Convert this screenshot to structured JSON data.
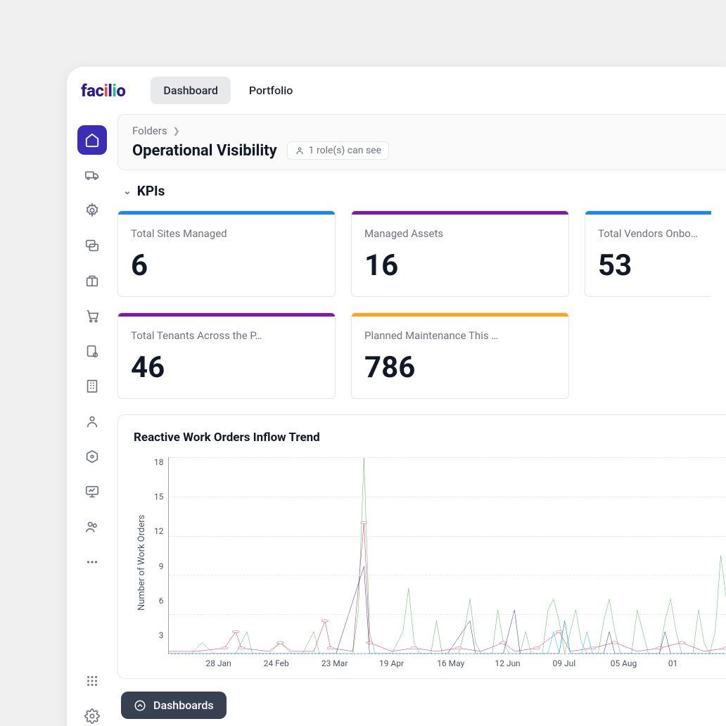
{
  "brand": {
    "name": "facilio"
  },
  "topnav": {
    "tabs": [
      {
        "label": "Dashboard",
        "active": true
      },
      {
        "label": "Portfolio",
        "active": false
      }
    ]
  },
  "breadcrumb": {
    "parent": "Folders",
    "title": "Operational Visibility",
    "roles_label": "1 role(s) can see"
  },
  "section": {
    "kpis_title": "KPIs"
  },
  "kpi_cards": [
    {
      "label": "Total Sites Managed",
      "value": "6",
      "stripe_color": "#1e88e5"
    },
    {
      "label": "Managed Assets",
      "value": "16",
      "stripe_color": "#7b1fa2"
    },
    {
      "label": "Total Vendors Onboarded",
      "value": "53",
      "stripe_color": "#1e88e5",
      "cut": true
    },
    {
      "label": "Total Tenants Across the P…",
      "value": "46",
      "stripe_color": "#7b1fa2"
    },
    {
      "label": "Planned Maintenance This …",
      "value": "786",
      "stripe_color": "#f5a623"
    }
  ],
  "chart": {
    "title": "Reactive Work Orders Inflow Trend",
    "type": "line",
    "y_label": "Number of Work Orders",
    "y_ticks": [
      "18",
      "15",
      "12",
      "9",
      "6",
      "3"
    ],
    "y_max": 18,
    "x_ticks": [
      "28 Jan",
      "24 Feb",
      "23 Mar",
      "19 Apr",
      "16 May",
      "12 Jun",
      "09 Jul",
      "05 Aug",
      "01"
    ],
    "grid_color": "#e5e7eb",
    "axis_color": "#9ca3af",
    "background_color": "#ffffff",
    "axis_fontsize": 12,
    "series": [
      {
        "name": "green",
        "color": "#4caf50",
        "stroke_width": 1.6,
        "points": [
          [
            0,
            0
          ],
          [
            4,
            0
          ],
          [
            6,
            1
          ],
          [
            8,
            0
          ],
          [
            12,
            0
          ],
          [
            14,
            2
          ],
          [
            15,
            0
          ],
          [
            18,
            0
          ],
          [
            20,
            1
          ],
          [
            22,
            0
          ],
          [
            24,
            0
          ],
          [
            26,
            2
          ],
          [
            27,
            0
          ],
          [
            33,
            0
          ],
          [
            34,
            4
          ],
          [
            35,
            18
          ],
          [
            36,
            2
          ],
          [
            37,
            0
          ],
          [
            40,
            0
          ],
          [
            42,
            2
          ],
          [
            43,
            6
          ],
          [
            44,
            1
          ],
          [
            45,
            0
          ],
          [
            47,
            0
          ],
          [
            48,
            3
          ],
          [
            49,
            0
          ],
          [
            52,
            0
          ],
          [
            53,
            2
          ],
          [
            54,
            5
          ],
          [
            55,
            1
          ],
          [
            56,
            0
          ],
          [
            58,
            0
          ],
          [
            59,
            4
          ],
          [
            60,
            1
          ],
          [
            61,
            0
          ],
          [
            63,
            0
          ],
          [
            64,
            2
          ],
          [
            65,
            0
          ],
          [
            67,
            0
          ],
          [
            68,
            4
          ],
          [
            69,
            5
          ],
          [
            70,
            3
          ],
          [
            71,
            0
          ],
          [
            72,
            2
          ],
          [
            73,
            4
          ],
          [
            74,
            1
          ],
          [
            75,
            0
          ],
          [
            77,
            0
          ],
          [
            78,
            3
          ],
          [
            79,
            5
          ],
          [
            80,
            2
          ],
          [
            81,
            0
          ],
          [
            83,
            0
          ],
          [
            84,
            4
          ],
          [
            85,
            2
          ],
          [
            86,
            0
          ],
          [
            88,
            0
          ],
          [
            89,
            3
          ],
          [
            90,
            5
          ],
          [
            91,
            2
          ],
          [
            92,
            0
          ],
          [
            94,
            0
          ],
          [
            95,
            4
          ],
          [
            96,
            1
          ],
          [
            97,
            0
          ],
          [
            98,
            2
          ],
          [
            99,
            9
          ],
          [
            100,
            5
          ]
        ]
      },
      {
        "name": "magenta",
        "color": "#c2185b",
        "stroke_width": 1.6,
        "marker": "circle",
        "marker_size": 3,
        "points": [
          [
            0,
            0.2
          ],
          [
            5,
            0.2
          ],
          [
            10,
            0.5
          ],
          [
            12,
            2
          ],
          [
            13,
            0.5
          ],
          [
            18,
            0.2
          ],
          [
            20,
            1
          ],
          [
            22,
            0.2
          ],
          [
            26,
            0.2
          ],
          [
            28,
            3
          ],
          [
            29,
            0.5
          ],
          [
            33,
            0.2
          ],
          [
            35,
            12
          ],
          [
            36,
            1
          ],
          [
            40,
            0.2
          ],
          [
            44,
            0.5
          ],
          [
            48,
            0.2
          ],
          [
            52,
            0.5
          ],
          [
            56,
            0.2
          ],
          [
            60,
            1
          ],
          [
            62,
            0.2
          ],
          [
            66,
            0.5
          ],
          [
            70,
            2
          ],
          [
            72,
            0.2
          ],
          [
            76,
            0.5
          ],
          [
            80,
            1
          ],
          [
            84,
            0.2
          ],
          [
            88,
            0.5
          ],
          [
            92,
            1
          ],
          [
            96,
            0.2
          ],
          [
            100,
            0.5
          ]
        ]
      },
      {
        "name": "navy",
        "color": "#1a237e",
        "stroke_width": 1.6,
        "points": [
          [
            0,
            0
          ],
          [
            30,
            0
          ],
          [
            35,
            8
          ],
          [
            36,
            0
          ],
          [
            50,
            0
          ],
          [
            54,
            3
          ],
          [
            55,
            0
          ],
          [
            60,
            0
          ],
          [
            62,
            4
          ],
          [
            63,
            0
          ],
          [
            70,
            0
          ],
          [
            71,
            3
          ],
          [
            72,
            0
          ],
          [
            78,
            0
          ],
          [
            79,
            2
          ],
          [
            80,
            0
          ],
          [
            88,
            0
          ],
          [
            89,
            2
          ],
          [
            90,
            0
          ],
          [
            100,
            0
          ]
        ]
      },
      {
        "name": "cyan",
        "color": "#00bcd4",
        "stroke_width": 1.6,
        "points": [
          [
            0,
            0
          ],
          [
            68,
            0
          ],
          [
            69,
            2
          ],
          [
            70,
            0
          ],
          [
            71,
            3
          ],
          [
            72,
            0
          ],
          [
            74,
            0
          ],
          [
            75,
            2
          ],
          [
            76,
            0
          ],
          [
            100,
            0
          ]
        ]
      }
    ]
  },
  "float_button": {
    "label": "Dashboards"
  }
}
